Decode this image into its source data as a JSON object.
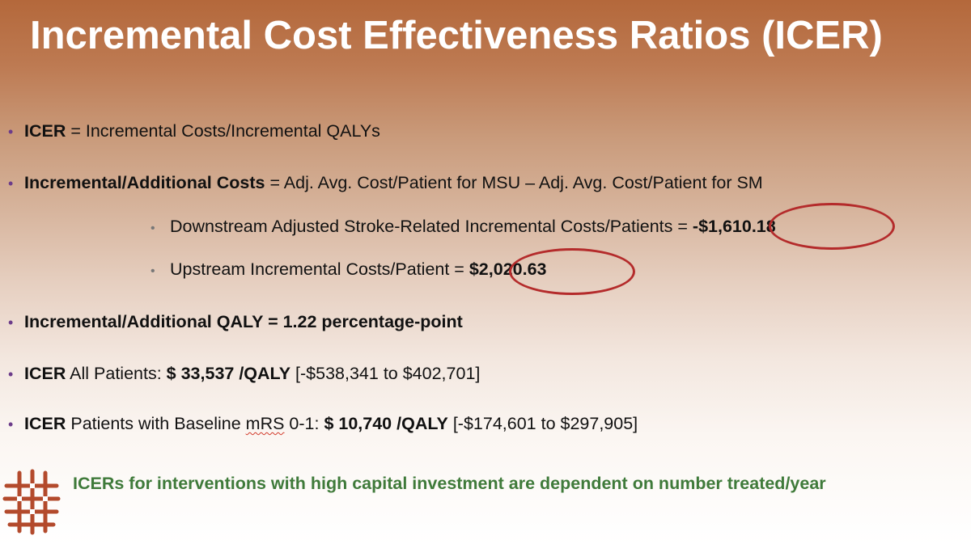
{
  "slide": {
    "title": "Incremental Cost Effectiveness Ratios (ICER)",
    "bullets": {
      "icer_def": {
        "bold": "ICER",
        "rest": " = Incremental Costs/Incremental QALYs"
      },
      "incr_costs": {
        "bold": "Incremental/Additional Costs",
        "rest": " = Adj. Avg. Cost/Patient for MSU – Adj. Avg. Cost/Patient for SM"
      },
      "downstream": {
        "text": "Downstream Adjusted Stroke-Related Incremental Costs/Patients = ",
        "value": "-$1,610.18"
      },
      "upstream": {
        "text": "Upstream Incremental Costs/Patient = ",
        "value": "$2,020.63"
      },
      "incr_qaly": {
        "bold": "Incremental/Additional QALY = 1.22 percentage-point"
      },
      "icer_all": {
        "bold": "ICER",
        "mid": " All Patients: ",
        "value": "$ 33,537 /QALY",
        "range": " [-$538,341 to $402,701]"
      },
      "icer_mrs": {
        "bold": "ICER",
        "mid_a": " Patients with Baseline ",
        "mrs": "mRS",
        "mid_b": " 0-1: ",
        "value": "$ 10,740 /QALY",
        "range": " [-$174,601 to $297,905]"
      }
    },
    "tagline": "ICERs for interventions with high capital investment are dependent on number treated/year",
    "bullet_glyph": "•",
    "logo_icon": "woven-lattice-logo-icon",
    "colors": {
      "title": "#ffffff",
      "tagline": "#3f7a3a",
      "highlight_circle": "#b42b2b",
      "bullet": "#6c3c8a",
      "logo": "#b34a2c"
    }
  }
}
